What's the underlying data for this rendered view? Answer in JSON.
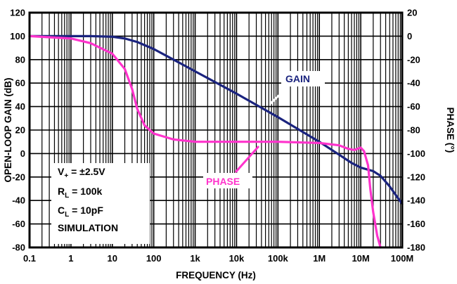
{
  "chart_data": {
    "type": "line",
    "xlabel": "FREQUENCY (Hz)",
    "ylabel": "OPEN-LOOP GAIN (dB)",
    "y2label": "PHASE (°)",
    "x_scale": "log",
    "xlim": [
      0.1,
      100000000
    ],
    "ylim": [
      -80,
      120
    ],
    "y2lim": [
      -180,
      20
    ],
    "grid": true,
    "x_tick_labels": [
      "0.1",
      "1",
      "10",
      "100",
      "1k",
      "10k",
      "100k",
      "1M",
      "10M",
      "100M"
    ],
    "y_tick_labels": [
      "120",
      "100",
      "80",
      "60",
      "40",
      "20",
      "0",
      "-20",
      "-40",
      "-60",
      "-80"
    ],
    "y2_tick_labels": [
      "20",
      "0",
      "-20",
      "-40",
      "-60",
      "-80",
      "-100",
      "-120",
      "-140",
      "-160",
      "-180"
    ],
    "series": [
      {
        "name": "GAIN",
        "axis": "left",
        "color": "#1a237e",
        "x": [
          0.1,
          0.5,
          1,
          3,
          10,
          20,
          40,
          100,
          300,
          1000,
          10000,
          100000,
          1000000,
          3000000,
          6000000,
          10000000,
          20000000,
          30000000,
          50000000,
          100000000
        ],
        "y": [
          100,
          100,
          100,
          100,
          99.5,
          98,
          95,
          89,
          80,
          70,
          51,
          31,
          10,
          -1,
          -8,
          -12,
          -15,
          -19,
          -28,
          -43
        ]
      },
      {
        "name": "PHASE",
        "axis": "right",
        "color": "#ff33cc",
        "x": [
          0.1,
          1,
          3,
          10,
          20,
          30,
          40,
          60,
          100,
          300,
          1000,
          10000,
          100000,
          1000000,
          3000000,
          5000000,
          7000000,
          10000000,
          12000000,
          15000000,
          17000000,
          20000000,
          25000000,
          30000000
        ],
        "y": [
          0,
          -2,
          -6,
          -15,
          -28,
          -45,
          -62,
          -76,
          -83,
          -88,
          -90,
          -90,
          -90,
          -91,
          -93,
          -96,
          -97,
          -95,
          -98,
          -110,
          -130,
          -150,
          -170,
          -180
        ]
      }
    ],
    "annotations": [
      {
        "text": "GAIN",
        "color": "#1a237e",
        "points_to": {
          "x": 31623,
          "y": 38
        }
      },
      {
        "text": "PHASE",
        "color": "#ff33cc",
        "points_to": {
          "x": 31623,
          "y2": -90
        }
      }
    ],
    "conditions": {
      "line1_main": "V",
      "line1_sub": "+",
      "line1_rest": " = ±2.5V",
      "line2_main": "R",
      "line2_sub": "L",
      "line2_rest": " = 100k",
      "line3_main": "C",
      "line3_sub": "L",
      "line3_rest": " = 10pF",
      "line4": "SIMULATION"
    }
  }
}
